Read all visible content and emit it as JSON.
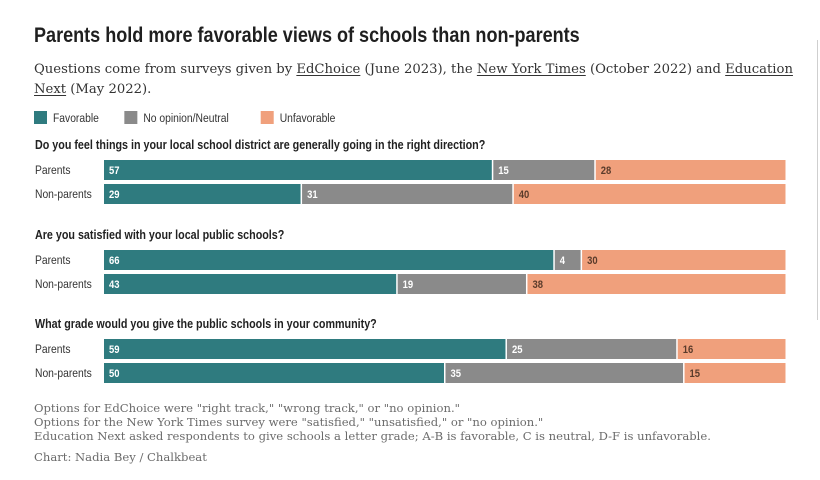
{
  "title": "Parents hold more favorable views of schools than non-parents",
  "subtitle": {
    "parts": [
      {
        "text": "Questions come from surveys given by ",
        "link": false
      },
      {
        "text": "EdChoice",
        "link": true
      },
      {
        "text": " (June 2023), the ",
        "link": false
      },
      {
        "text": "New York Times",
        "link": true
      },
      {
        "text": " (October 2022) and ",
        "link": false
      },
      {
        "text": "Education",
        "link": true
      },
      {
        "text": "Next",
        "link": true,
        "newline": true
      },
      {
        "text": " (May 2022).",
        "link": false
      }
    ]
  },
  "notes": [
    "Options for EdChoice were \"right track,\" \"wrong track,\" or \"no opinion.\"",
    "Options for the New York Times survey were \"satisfied,\" \"unsatisfied,\" or \"no opinion.\"",
    "Education Next asked respondents to give schools a letter grade; A-B is favorable, C is neutral, D-F is unfavorable."
  ],
  "credit": "Chart: Nadia Bey / Chalkbeat",
  "colors": {
    "favorable": "#2f7b7f",
    "neutral": "#8a8a8a",
    "unfavorable": "#f0a07c",
    "label_on_bar": "#ffffff",
    "label_on_light": "#5a3b2b"
  },
  "chart_data": {
    "type": "bar",
    "orientation": "horizontal",
    "stacked": true,
    "legend": {
      "placement": "top-left",
      "entries": [
        "Favorable",
        "No opinion/Neutral",
        "Unfavorable"
      ]
    },
    "xlim": [
      0,
      100
    ],
    "groups": [
      {
        "question": "Do you feel things in your local school district are generally going in the right direction?",
        "categories": [
          "Parents",
          "Non-parents"
        ],
        "series": [
          {
            "name": "Favorable",
            "values": [
              57,
              29
            ]
          },
          {
            "name": "No opinion/Neutral",
            "values": [
              15,
              31
            ]
          },
          {
            "name": "Unfavorable",
            "values": [
              28,
              40
            ]
          }
        ]
      },
      {
        "question": "Are you satisfied with your local public schools?",
        "categories": [
          "Parents",
          "Non-parents"
        ],
        "series": [
          {
            "name": "Favorable",
            "values": [
              66,
              43
            ]
          },
          {
            "name": "No opinion/Neutral",
            "values": [
              4,
              19
            ]
          },
          {
            "name": "Unfavorable",
            "values": [
              30,
              38
            ]
          }
        ]
      },
      {
        "question": "What grade would you give the public schools in your community?",
        "categories": [
          "Parents",
          "Non-parents"
        ],
        "series": [
          {
            "name": "Favorable",
            "values": [
              59,
              50
            ]
          },
          {
            "name": "No opinion/Neutral",
            "values": [
              25,
              35
            ]
          },
          {
            "name": "Unfavorable",
            "values": [
              16,
              15
            ]
          }
        ]
      }
    ]
  }
}
